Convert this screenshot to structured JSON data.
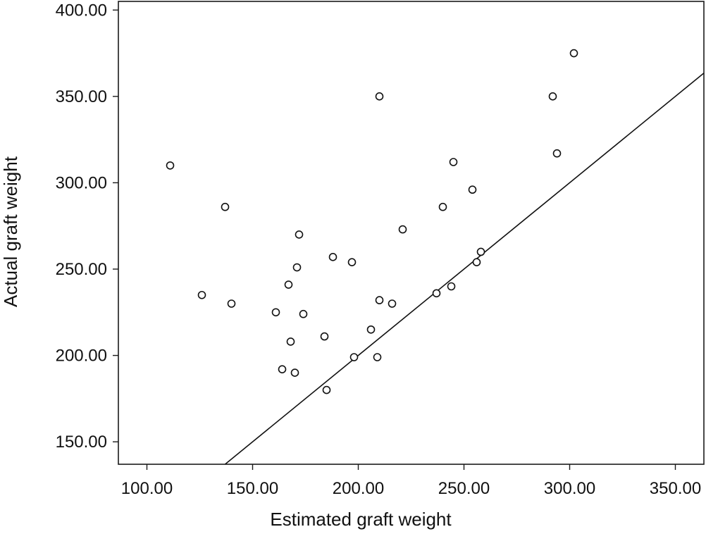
{
  "chart_data": {
    "type": "scatter",
    "title": "",
    "xlabel": "Estimated graft weight",
    "ylabel": "Actual graft weight",
    "xlim": [
      86.5,
      363.5
    ],
    "ylim": [
      137,
      405
    ],
    "x_ticks": [
      100,
      150,
      200,
      250,
      300,
      350
    ],
    "y_ticks": [
      150,
      200,
      250,
      300,
      350,
      400
    ],
    "x_tick_labels": [
      "100.00",
      "150.00",
      "200.00",
      "250.00",
      "300.00",
      "350.00"
    ],
    "y_tick_labels": [
      "150.00",
      "200.00",
      "250.00",
      "300.00",
      "350.00",
      "400.00"
    ],
    "grid": false,
    "reference_line": "y = x",
    "points": [
      {
        "x": 111,
        "y": 310
      },
      {
        "x": 126,
        "y": 235
      },
      {
        "x": 137,
        "y": 286
      },
      {
        "x": 140,
        "y": 230
      },
      {
        "x": 161,
        "y": 225
      },
      {
        "x": 164,
        "y": 192
      },
      {
        "x": 167,
        "y": 241
      },
      {
        "x": 168,
        "y": 208
      },
      {
        "x": 170,
        "y": 190
      },
      {
        "x": 171,
        "y": 251
      },
      {
        "x": 172,
        "y": 270
      },
      {
        "x": 174,
        "y": 224
      },
      {
        "x": 184,
        "y": 211
      },
      {
        "x": 185,
        "y": 180
      },
      {
        "x": 188,
        "y": 257
      },
      {
        "x": 197,
        "y": 254
      },
      {
        "x": 198,
        "y": 199
      },
      {
        "x": 206,
        "y": 215
      },
      {
        "x": 209,
        "y": 199
      },
      {
        "x": 210,
        "y": 350
      },
      {
        "x": 210,
        "y": 232
      },
      {
        "x": 216,
        "y": 230
      },
      {
        "x": 221,
        "y": 273
      },
      {
        "x": 237,
        "y": 236
      },
      {
        "x": 240,
        "y": 286
      },
      {
        "x": 244,
        "y": 240
      },
      {
        "x": 245,
        "y": 312
      },
      {
        "x": 254,
        "y": 296
      },
      {
        "x": 256,
        "y": 254
      },
      {
        "x": 258,
        "y": 260
      },
      {
        "x": 292,
        "y": 350
      },
      {
        "x": 294,
        "y": 317
      },
      {
        "x": 302,
        "y": 375
      }
    ]
  }
}
